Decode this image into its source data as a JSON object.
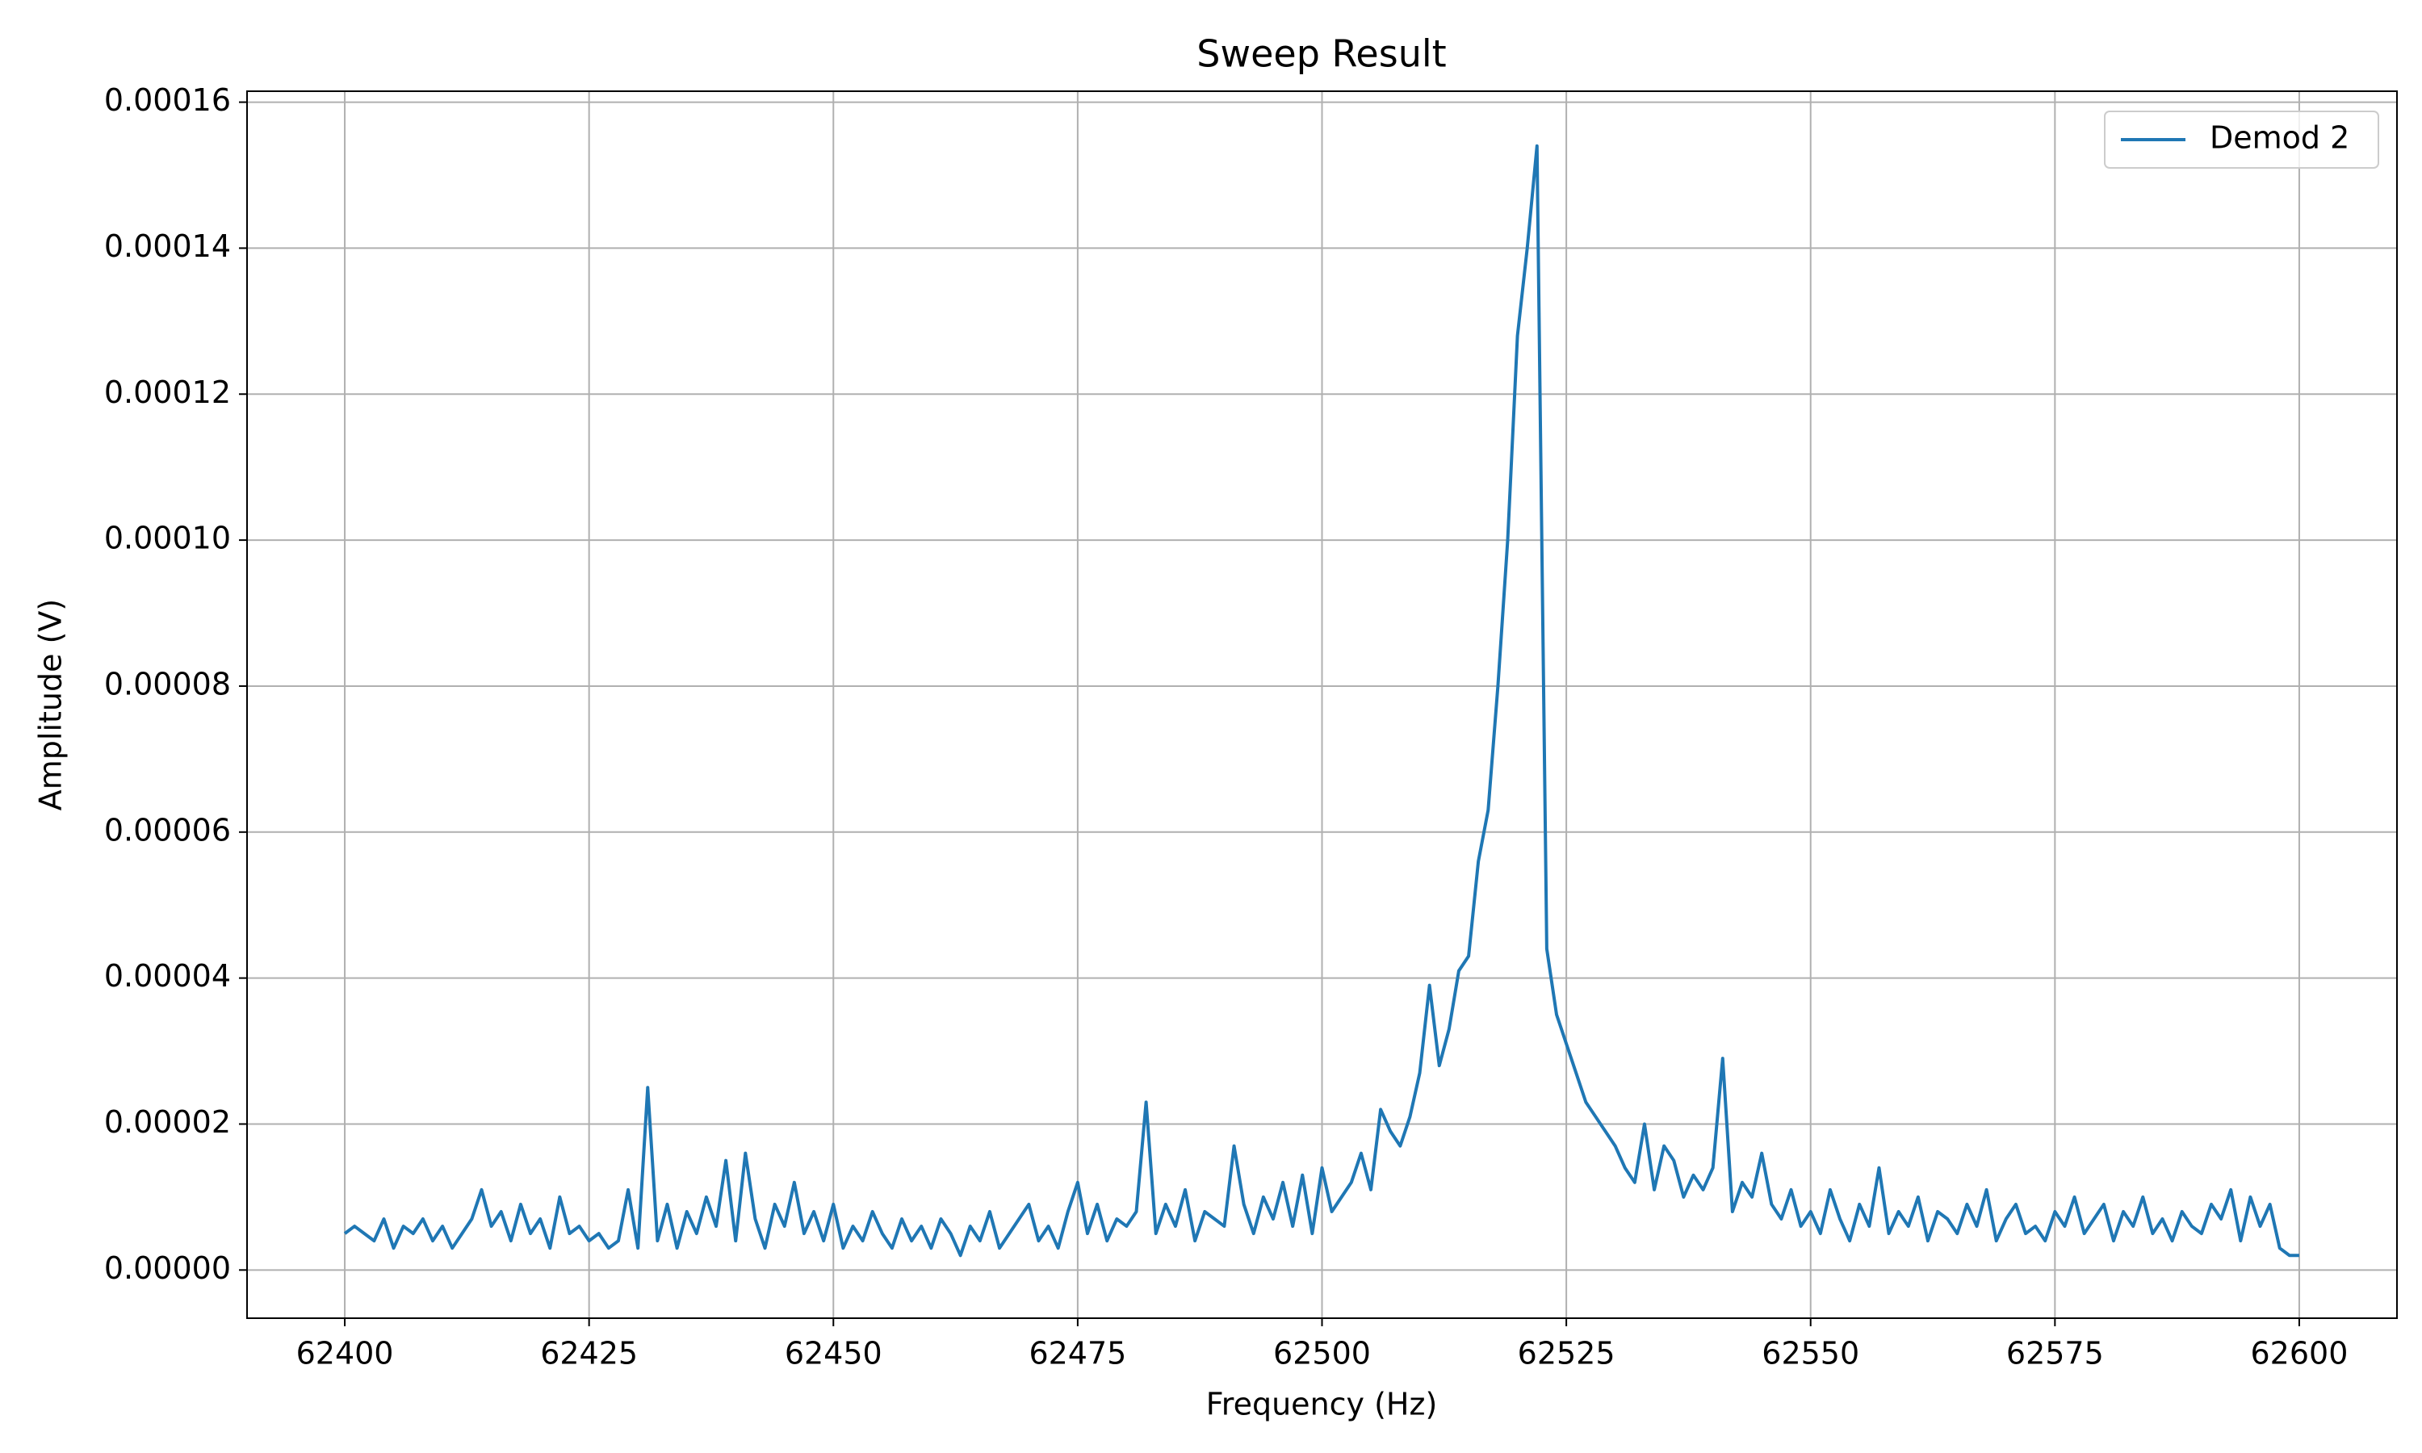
{
  "chart_data": {
    "type": "line",
    "title": "Sweep Result",
    "x_label": "Frequency (Hz)",
    "y_label": "Amplitude (V)",
    "x": [
      62400,
      62401,
      62402,
      62403,
      62404,
      62405,
      62406,
      62407,
      62408,
      62409,
      62410,
      62411,
      62412,
      62413,
      62414,
      62415,
      62416,
      62417,
      62418,
      62419,
      62420,
      62421,
      62422,
      62423,
      62424,
      62425,
      62426,
      62427,
      62428,
      62429,
      62430,
      62431,
      62432,
      62433,
      62434,
      62435,
      62436,
      62437,
      62438,
      62439,
      62440,
      62441,
      62442,
      62443,
      62444,
      62445,
      62446,
      62447,
      62448,
      62449,
      62450,
      62451,
      62452,
      62453,
      62454,
      62455,
      62456,
      62457,
      62458,
      62459,
      62460,
      62461,
      62462,
      62463,
      62464,
      62465,
      62466,
      62467,
      62468,
      62469,
      62470,
      62471,
      62472,
      62473,
      62474,
      62475,
      62476,
      62477,
      62478,
      62479,
      62480,
      62481,
      62482,
      62483,
      62484,
      62485,
      62486,
      62487,
      62488,
      62489,
      62490,
      62491,
      62492,
      62493,
      62494,
      62495,
      62496,
      62497,
      62498,
      62499,
      62500,
      62501,
      62502,
      62503,
      62504,
      62505,
      62506,
      62507,
      62508,
      62509,
      62510,
      62511,
      62512,
      62513,
      62514,
      62515,
      62516,
      62517,
      62518,
      62519,
      62520,
      62521,
      62522,
      62523,
      62524,
      62525,
      62526,
      62527,
      62528,
      62529,
      62530,
      62531,
      62532,
      62533,
      62534,
      62535,
      62536,
      62537,
      62538,
      62539,
      62540,
      62541,
      62542,
      62543,
      62544,
      62545,
      62546,
      62547,
      62548,
      62549,
      62550,
      62551,
      62552,
      62553,
      62554,
      62555,
      62556,
      62557,
      62558,
      62559,
      62560,
      62561,
      62562,
      62563,
      62564,
      62565,
      62566,
      62567,
      62568,
      62569,
      62570,
      62571,
      62572,
      62573,
      62574,
      62575,
      62576,
      62577,
      62578,
      62579,
      62580,
      62581,
      62582,
      62583,
      62584,
      62585,
      62586,
      62587,
      62588,
      62589,
      62590,
      62591,
      62592,
      62593,
      62594,
      62595,
      62596,
      62597,
      62598,
      62599,
      62600
    ],
    "series": [
      {
        "name": "Demod 2",
        "color": "#1f77b4",
        "values": [
          5e-06,
          6e-06,
          5e-06,
          4e-06,
          7e-06,
          3e-06,
          6e-06,
          5e-06,
          7e-06,
          4e-06,
          6e-06,
          3e-06,
          5e-06,
          7e-06,
          1.1e-05,
          6e-06,
          8e-06,
          4e-06,
          9e-06,
          5e-06,
          7e-06,
          3e-06,
          1e-05,
          5e-06,
          6e-06,
          4e-06,
          5e-06,
          3e-06,
          4e-06,
          1.1e-05,
          3e-06,
          2.5e-05,
          4e-06,
          9e-06,
          3e-06,
          8e-06,
          5e-06,
          1e-05,
          6e-06,
          1.5e-05,
          4e-06,
          1.6e-05,
          7e-06,
          3e-06,
          9e-06,
          6e-06,
          1.2e-05,
          5e-06,
          8e-06,
          4e-06,
          9e-06,
          3e-06,
          6e-06,
          4e-06,
          8e-06,
          5e-06,
          3e-06,
          7e-06,
          4e-06,
          6e-06,
          3e-06,
          7e-06,
          5e-06,
          2e-06,
          6e-06,
          4e-06,
          8e-06,
          3e-06,
          5e-06,
          7e-06,
          9e-06,
          4e-06,
          6e-06,
          3e-06,
          8e-06,
          1.2e-05,
          5e-06,
          9e-06,
          4e-06,
          7e-06,
          6e-06,
          8e-06,
          2.3e-05,
          5e-06,
          9e-06,
          6e-06,
          1.1e-05,
          4e-06,
          8e-06,
          7e-06,
          6e-06,
          1.7e-05,
          9e-06,
          5e-06,
          1e-05,
          7e-06,
          1.2e-05,
          6e-06,
          1.3e-05,
          5e-06,
          1.4e-05,
          8e-06,
          1e-05,
          1.2e-05,
          1.6e-05,
          1.1e-05,
          2.2e-05,
          1.9e-05,
          1.7e-05,
          2.1e-05,
          2.7e-05,
          3.9e-05,
          2.8e-05,
          3.3e-05,
          4.1e-05,
          4.3e-05,
          5.6e-05,
          6.3e-05,
          8e-05,
          0.0001,
          0.000128,
          0.00014,
          0.000154,
          4.4e-05,
          3.5e-05,
          3.1e-05,
          2.7e-05,
          2.3e-05,
          2.1e-05,
          1.9e-05,
          1.7e-05,
          1.4e-05,
          1.2e-05,
          2e-05,
          1.1e-05,
          1.7e-05,
          1.5e-05,
          1e-05,
          1.3e-05,
          1.1e-05,
          1.4e-05,
          2.9e-05,
          8e-06,
          1.2e-05,
          1e-05,
          1.6e-05,
          9e-06,
          7e-06,
          1.1e-05,
          6e-06,
          8e-06,
          5e-06,
          1.1e-05,
          7e-06,
          4e-06,
          9e-06,
          6e-06,
          1.4e-05,
          5e-06,
          8e-06,
          6e-06,
          1e-05,
          4e-06,
          8e-06,
          7e-06,
          5e-06,
          9e-06,
          6e-06,
          1.1e-05,
          4e-06,
          7e-06,
          9e-06,
          5e-06,
          6e-06,
          4e-06,
          8e-06,
          6e-06,
          1e-05,
          5e-06,
          7e-06,
          9e-06,
          4e-06,
          8e-06,
          6e-06,
          1e-05,
          5e-06,
          7e-06,
          4e-06,
          8e-06,
          6e-06,
          5e-06,
          9e-06,
          7e-06,
          1.1e-05,
          4e-06,
          1e-05,
          6e-06,
          9e-06,
          3e-06,
          2e-06,
          2e-06
        ]
      }
    ],
    "xlim": [
      62390,
      62610
    ],
    "ylim": [
      -6.6e-06,
      0.0001615
    ],
    "xticks": [
      62400,
      62425,
      62450,
      62475,
      62500,
      62525,
      62550,
      62575,
      62600
    ],
    "yticks": [
      {
        "value": 0,
        "label": "0.00000"
      },
      {
        "value": 2e-05,
        "label": "0.00002"
      },
      {
        "value": 4e-05,
        "label": "0.00004"
      },
      {
        "value": 6e-05,
        "label": "0.00006"
      },
      {
        "value": 8e-05,
        "label": "0.00008"
      },
      {
        "value": 0.0001,
        "label": "0.00010"
      },
      {
        "value": 0.00012,
        "label": "0.00012"
      },
      {
        "value": 0.00014,
        "label": "0.00014"
      },
      {
        "value": 0.00016,
        "label": "0.00016"
      }
    ],
    "grid": true,
    "legend": "upper right"
  }
}
